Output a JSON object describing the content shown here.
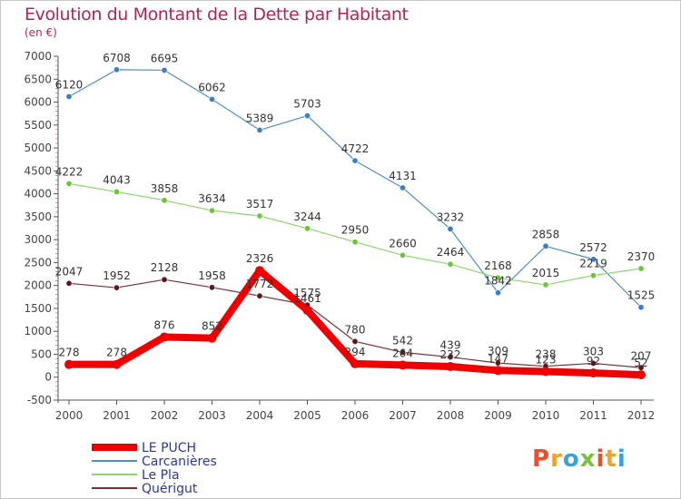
{
  "header": {
    "title": "Evolution du Montant de la Dette par Habitant",
    "subtitle": "(en €)"
  },
  "logo": {
    "text": "Proxiti",
    "colors": [
      "#e8502b",
      "#f2a12a",
      "#3aa3d8",
      "#7bbf3a",
      "#e8502b",
      "#f2a12a",
      "#3aa3d8"
    ]
  },
  "chart_data": {
    "type": "line",
    "title": "Evolution du Montant de la Dette par Habitant",
    "subtitle": "(en €)",
    "xlabel": "",
    "ylabel": "",
    "ylim": [
      -500,
      7000
    ],
    "yticks": [
      -500,
      0,
      500,
      1000,
      1500,
      2000,
      2500,
      3000,
      3500,
      4000,
      4500,
      5000,
      5500,
      6000,
      6500,
      7000
    ],
    "grid": false,
    "legend_position": "bottom-left",
    "x": [
      "2000",
      "2001",
      "2002",
      "2003",
      "2004",
      "2005",
      "2006",
      "2007",
      "2008",
      "2009",
      "2010",
      "2011",
      "2012"
    ],
    "series": [
      {
        "name": "Carcanières",
        "color": "#4a90c8",
        "marker": "#3b7fc4",
        "width": 1.2,
        "label_pos": "above",
        "values": [
          6120,
          6708,
          6695,
          6062,
          5389,
          5703,
          4722,
          4131,
          3232,
          1842,
          2858,
          2572,
          1525
        ],
        "labels": [
          "6120",
          "6708",
          "6695",
          "6062",
          "5389",
          "5703",
          "4722",
          "4131",
          "3232",
          "1842",
          "2858",
          "2572",
          "1525"
        ]
      },
      {
        "name": "Le Pla",
        "color": "#8fd66a",
        "marker": "#6cc63a",
        "width": 1.2,
        "label_pos": "above",
        "values": [
          4222,
          4043,
          3858,
          3634,
          3517,
          3244,
          2950,
          2660,
          2464,
          2168,
          2015,
          2219,
          2370
        ],
        "labels": [
          "4222",
          "4043",
          "3858",
          "3634",
          "3517",
          "3244",
          "2950",
          "2660",
          "2464",
          "2168",
          "2015",
          "2219",
          "2370"
        ]
      },
      {
        "name": "Quérigut",
        "color": "#7a3030",
        "marker": "#5a1a1a",
        "width": 1.2,
        "label_pos": "above",
        "values": [
          2047,
          1952,
          2128,
          1958,
          1772,
          1575,
          780,
          542,
          439,
          309,
          238,
          303,
          207
        ],
        "labels": [
          "2047",
          "1952",
          "2128",
          "1958",
          "1772",
          "1575",
          "780",
          "542",
          "439",
          "309",
          "238",
          "303",
          "207"
        ]
      },
      {
        "name": "LE PUCH",
        "color": "#ee0000",
        "marker": "#ee0000",
        "width": 8,
        "label_pos": "above",
        "values": [
          278,
          278,
          876,
          852,
          2326,
          1461,
          294,
          264,
          232,
          147,
          123,
          92,
          52
        ],
        "labels": [
          "278",
          "278",
          "876",
          "852",
          "2326",
          "1461",
          "294",
          "264",
          "232",
          "147",
          "123",
          "92",
          "52"
        ]
      }
    ]
  },
  "legend": {
    "items": [
      {
        "name": "LE PUCH",
        "color": "#ee0000",
        "width": 8
      },
      {
        "name": "Carcanières",
        "color": "#4a90c8",
        "width": 2
      },
      {
        "name": "Le Pla",
        "color": "#8fd66a",
        "width": 2
      },
      {
        "name": "Quérigut",
        "color": "#7a3030",
        "width": 2
      }
    ]
  }
}
